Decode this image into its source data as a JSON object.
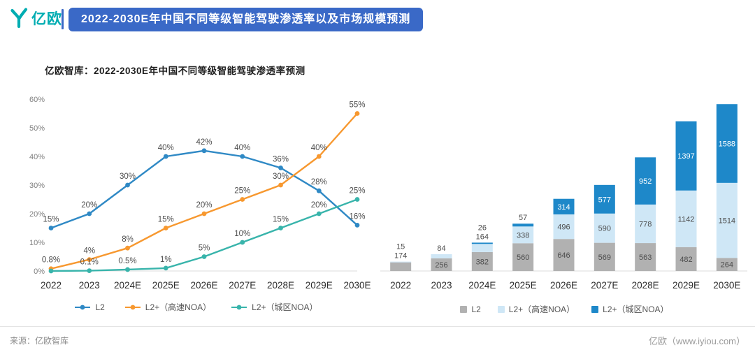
{
  "header": {
    "logo_text": "亿欧",
    "title": "2022-2030E年中国不同等级智能驾驶渗透率以及市场规模预测"
  },
  "footer": {
    "source": "来源：亿欧智库",
    "site": "亿欧（www.iyiou.com）"
  },
  "colors": {
    "accent_blue": "#3a69c7",
    "logo_teal": "#00adb2",
    "line_l2": "#2f89c5",
    "line_noa_highway": "#f7982f",
    "line_noa_city": "#38b4ab",
    "bar_l2": "#b1b1b1",
    "bar_noa_highway": "#cfe7f6",
    "bar_noa_city": "#1e88c9"
  },
  "chart_data": [
    {
      "type": "line",
      "title": "亿欧智库：2022-2030E年中国不同等级智能驾驶渗透率预测",
      "categories": [
        "2022",
        "2023",
        "2024E",
        "2025E",
        "2026E",
        "2027E",
        "2028E",
        "2029E",
        "2030E"
      ],
      "ylim": [
        0,
        60
      ],
      "ytick_labels": [
        "0%",
        "10%",
        "20%",
        "30%",
        "40%",
        "50%",
        "60%"
      ],
      "grid": false,
      "legend_position": "bottom",
      "series": [
        {
          "name": "L2",
          "color_key": "line_l2",
          "values": [
            15,
            20,
            30,
            40,
            42,
            40,
            36,
            28,
            16
          ],
          "point_labels": [
            "15%",
            "20%",
            "30%",
            "40%",
            "42%",
            "40%",
            "36%",
            "28%",
            "16%"
          ]
        },
        {
          "name": "L2+（高速NOA）",
          "color_key": "line_noa_highway",
          "values": [
            0.8,
            4,
            8,
            15,
            20,
            25,
            30,
            40,
            55
          ],
          "point_labels": [
            "0.8%",
            "4%",
            "8%",
            "15%",
            "20%",
            "25%",
            "30%",
            "40%",
            "55%"
          ]
        },
        {
          "name": "L2+（城区NOA）",
          "color_key": "line_noa_city",
          "values": [
            0,
            0.1,
            0.5,
            1,
            5,
            10,
            15,
            20,
            25
          ],
          "point_labels": [
            "",
            "0.1%",
            "0.5%",
            "1%",
            "5%",
            "10%",
            "15%",
            "20%",
            "25%"
          ]
        }
      ]
    },
    {
      "type": "bar",
      "stacked": true,
      "categories": [
        "2022",
        "2023",
        "2024E",
        "2025E",
        "2026E",
        "2027E",
        "2028E",
        "2029E",
        "2030E"
      ],
      "legend_position": "bottom",
      "series": [
        {
          "name": "L2",
          "color_key": "bar_l2",
          "values": [
            174,
            256,
            382,
            560,
            646,
            569,
            563,
            482,
            264
          ]
        },
        {
          "name": "L2+（高速NOA）",
          "color_key": "bar_noa_highway",
          "values": [
            15,
            84,
            164,
            338,
            496,
            590,
            778,
            1142,
            1514
          ]
        },
        {
          "name": "L2+（城区NOA）",
          "color_key": "bar_noa_city",
          "values": [
            0,
            0,
            26,
            57,
            314,
            577,
            952,
            1397,
            1588
          ]
        }
      ]
    }
  ]
}
